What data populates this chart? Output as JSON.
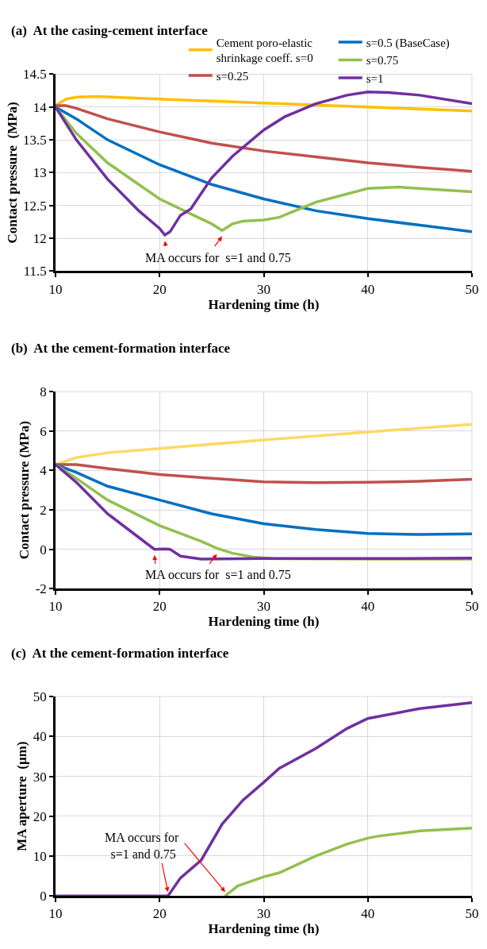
{
  "chart_data": [
    {
      "type": "line",
      "title": "(a)  At the casing-cement interface",
      "xlabel": "Hardening time (h)",
      "ylabel": "Contact pressure  (MPa)",
      "xlim": [
        10,
        50
      ],
      "xticks": [
        10,
        20,
        30,
        40,
        50
      ],
      "ylim": [
        11.5,
        14.5
      ],
      "yticks": [
        11.5,
        12,
        12.5,
        13,
        13.5,
        14,
        14.5
      ],
      "grid": true,
      "legend": "top",
      "annotations": [
        {
          "text": "MA occurs for  s=1 and 0.75",
          "x": 20.5,
          "y": 12.05
        }
      ],
      "series": [
        {
          "name": "Cement poro-elastic shrinkage coeff. s=0",
          "color": "#ffc000",
          "x": [
            10,
            11,
            12,
            14,
            20,
            30,
            40,
            50
          ],
          "values": [
            14.02,
            14.12,
            14.15,
            14.16,
            14.12,
            14.06,
            14.0,
            13.94
          ]
        },
        {
          "name": "s=0.25",
          "color": "#c0504d",
          "x": [
            10,
            11,
            12,
            15,
            20,
            25,
            30,
            35,
            40,
            45,
            50
          ],
          "values": [
            14.02,
            14.02,
            13.98,
            13.82,
            13.62,
            13.45,
            13.33,
            13.24,
            13.15,
            13.08,
            13.02
          ]
        },
        {
          "name": "s=0.5 (BaseCase)",
          "color": "#0070c0",
          "x": [
            10,
            12,
            15,
            20,
            25,
            30,
            35,
            40,
            45,
            50
          ],
          "values": [
            14.0,
            13.82,
            13.5,
            13.12,
            12.82,
            12.6,
            12.42,
            12.3,
            12.2,
            12.1
          ]
        },
        {
          "name": "s=0.75",
          "color": "#92c050",
          "x": [
            10,
            12,
            15,
            20,
            25,
            26,
            27,
            28,
            30,
            31.5,
            35,
            40,
            43,
            50
          ],
          "values": [
            14.0,
            13.6,
            13.15,
            12.6,
            12.22,
            12.12,
            12.22,
            12.26,
            12.28,
            12.32,
            12.55,
            12.76,
            12.78,
            12.71
          ]
        },
        {
          "name": "s=1",
          "color": "#7030a0",
          "x": [
            10,
            12,
            15,
            18,
            20,
            20.5,
            21,
            22,
            23,
            25,
            27,
            30,
            32,
            35,
            38,
            40,
            42,
            45,
            50
          ],
          "values": [
            14.0,
            13.5,
            12.9,
            12.42,
            12.15,
            12.05,
            12.1,
            12.35,
            12.45,
            12.92,
            13.25,
            13.65,
            13.85,
            14.05,
            14.18,
            14.23,
            14.22,
            14.18,
            14.05
          ]
        }
      ]
    },
    {
      "type": "line",
      "title": "(b)  At the cement-formation interface",
      "xlabel": "Hardening time (h)",
      "ylabel": "Contact pressure (MPa)",
      "xlim": [
        10,
        50
      ],
      "xticks": [
        10,
        20,
        30,
        40,
        50
      ],
      "ylim": [
        -2,
        8
      ],
      "yticks": [
        -2,
        0,
        2,
        4,
        6,
        8
      ],
      "grid": true,
      "annotations": [
        {
          "text": "MA occurs for  s=1 and 0.75",
          "x": 19.5,
          "y": 0
        }
      ],
      "series": [
        {
          "color": "#ffd966",
          "x": [
            10,
            12,
            15,
            20,
            30,
            40,
            50
          ],
          "values": [
            4.3,
            4.65,
            4.9,
            5.12,
            5.55,
            5.95,
            6.35
          ]
        },
        {
          "color": "#c0504d",
          "x": [
            10,
            12,
            15,
            20,
            25,
            30,
            35,
            40,
            45,
            50
          ],
          "values": [
            4.3,
            4.3,
            4.1,
            3.8,
            3.6,
            3.42,
            3.38,
            3.4,
            3.45,
            3.55
          ]
        },
        {
          "color": "#0070c0",
          "x": [
            10,
            12,
            15,
            20,
            25,
            30,
            35,
            40,
            45,
            50
          ],
          "values": [
            4.3,
            3.9,
            3.2,
            2.5,
            1.8,
            1.3,
            1.0,
            0.8,
            0.75,
            0.78
          ]
        },
        {
          "color": "#92c050",
          "x": [
            10,
            12,
            15,
            20,
            24,
            25.5,
            27,
            29,
            31,
            40,
            50
          ],
          "values": [
            4.3,
            3.6,
            2.5,
            1.2,
            0.4,
            0.05,
            -0.2,
            -0.4,
            -0.48,
            -0.5,
            -0.5
          ]
        },
        {
          "color": "#7030a0",
          "x": [
            10,
            12,
            15,
            18,
            19.5,
            20.5,
            21,
            22,
            24,
            30,
            40,
            50
          ],
          "values": [
            4.3,
            3.4,
            1.8,
            0.6,
            0.0,
            0.02,
            0.0,
            -0.35,
            -0.5,
            -0.47,
            -0.47,
            -0.45
          ]
        }
      ]
    },
    {
      "type": "line",
      "title": "(c)  At the cement-formation interface",
      "xlabel": "Hardening time (h)",
      "ylabel": "MA aperture  (µm)",
      "xlim": [
        10,
        50
      ],
      "xticks": [
        10,
        20,
        30,
        40,
        50
      ],
      "ylim": [
        0,
        50
      ],
      "yticks": [
        0,
        10,
        20,
        30,
        40,
        50
      ],
      "grid": true,
      "annotations": [
        {
          "text": "MA occurs for  s=1 and 0.75",
          "x": 20.8,
          "y": 0
        }
      ],
      "series": [
        {
          "color": "#92c050",
          "x": [
            26.3,
            27.5,
            30,
            31.5,
            35,
            38,
            40,
            41,
            45,
            50
          ],
          "values": [
            0,
            2.5,
            4.8,
            5.8,
            10,
            13,
            14.5,
            15,
            16.3,
            17
          ]
        },
        {
          "color": "#7030a0",
          "x": [
            10,
            20.8,
            22,
            24,
            26,
            28,
            30,
            31.5,
            35,
            38,
            40,
            41,
            45,
            50
          ],
          "values": [
            0,
            0,
            4.5,
            9,
            18,
            24,
            28.5,
            32,
            37,
            42,
            44.5,
            45,
            47,
            48.5
          ]
        }
      ]
    }
  ]
}
